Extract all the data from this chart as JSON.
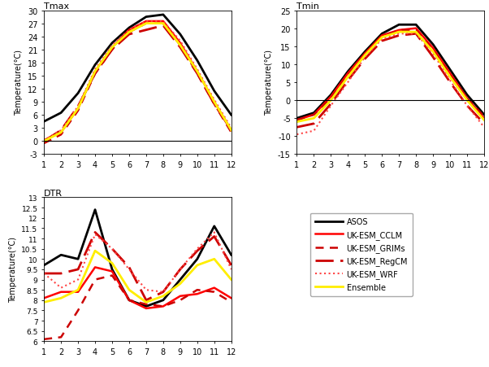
{
  "months": [
    1,
    2,
    3,
    4,
    5,
    6,
    7,
    8,
    9,
    10,
    11,
    12
  ],
  "tmax": {
    "ASOS": [
      4.5,
      6.5,
      11.0,
      17.5,
      22.5,
      26.0,
      28.5,
      29.0,
      24.5,
      18.5,
      11.5,
      6.0
    ],
    "UK-ESM_CCLM": [
      0.2,
      2.0,
      7.5,
      16.0,
      21.5,
      25.5,
      27.5,
      27.5,
      22.5,
      16.0,
      9.0,
      2.5
    ],
    "UK-ESM_GRIMs": [
      -0.5,
      1.5,
      7.0,
      15.5,
      21.0,
      25.0,
      27.0,
      27.0,
      22.0,
      15.5,
      8.5,
      2.0
    ],
    "UK-ESM_RegCM": [
      0.0,
      2.5,
      8.0,
      15.5,
      21.0,
      24.5,
      25.5,
      26.5,
      21.5,
      15.5,
      8.5,
      2.5
    ],
    "UK-ESM_WRF": [
      0.2,
      2.5,
      8.0,
      16.5,
      22.0,
      25.5,
      27.5,
      27.5,
      23.0,
      16.5,
      9.5,
      3.0
    ],
    "Ensemble": [
      0.0,
      2.0,
      7.5,
      16.0,
      21.5,
      25.0,
      27.0,
      27.0,
      22.0,
      16.0,
      9.0,
      2.5
    ]
  },
  "tmin": {
    "ASOS": [
      -5.0,
      -3.5,
      1.5,
      8.0,
      13.5,
      18.5,
      21.0,
      21.0,
      15.5,
      8.5,
      1.5,
      -4.0
    ],
    "UK-ESM_CCLM": [
      -5.5,
      -4.0,
      1.0,
      7.5,
      13.0,
      18.0,
      19.5,
      20.0,
      14.5,
      7.5,
      0.5,
      -5.0
    ],
    "UK-ESM_GRIMs": [
      -5.5,
      -4.0,
      0.5,
      7.0,
      12.5,
      17.5,
      19.5,
      19.5,
      14.0,
      7.0,
      0.5,
      -4.5
    ],
    "UK-ESM_RegCM": [
      -7.5,
      -6.5,
      -1.0,
      5.5,
      11.5,
      16.5,
      18.0,
      18.5,
      12.0,
      5.0,
      -1.5,
      -6.5
    ],
    "UK-ESM_WRF": [
      -9.5,
      -8.5,
      -1.5,
      5.0,
      12.0,
      17.0,
      18.5,
      18.5,
      13.0,
      5.5,
      -1.5,
      -7.5
    ],
    "Ensemble": [
      -6.0,
      -5.0,
      0.0,
      6.5,
      12.5,
      17.5,
      19.0,
      19.0,
      13.5,
      6.5,
      0.0,
      -5.5
    ]
  },
  "dtr": {
    "ASOS": [
      9.7,
      10.2,
      10.0,
      12.4,
      9.5,
      8.0,
      7.7,
      8.0,
      9.0,
      10.0,
      11.6,
      10.2
    ],
    "UK-ESM_CCLM": [
      8.1,
      8.4,
      8.4,
      9.6,
      9.4,
      8.0,
      7.6,
      7.7,
      8.2,
      8.3,
      8.6,
      8.1
    ],
    "UK-ESM_GRIMs": [
      6.1,
      6.2,
      7.5,
      9.0,
      9.2,
      8.0,
      7.8,
      7.7,
      8.0,
      8.5,
      8.4,
      7.9
    ],
    "UK-ESM_RegCM": [
      9.3,
      9.3,
      9.5,
      11.3,
      10.5,
      9.6,
      8.0,
      8.4,
      9.5,
      10.4,
      11.1,
      9.7
    ],
    "UK-ESM_WRF": [
      9.3,
      8.6,
      9.0,
      11.2,
      10.5,
      9.5,
      8.5,
      8.4,
      9.5,
      10.5,
      11.3,
      9.5
    ],
    "Ensemble": [
      7.9,
      8.1,
      8.5,
      10.4,
      9.8,
      8.5,
      7.9,
      8.2,
      8.8,
      9.7,
      10.0,
      9.0
    ]
  },
  "colors": {
    "ASOS": "#000000",
    "UK-ESM_CCLM": "#ff0000",
    "UK-ESM_GRIMs": "#cc0000",
    "UK-ESM_RegCM": "#cc0000",
    "UK-ESM_WRF": "#ff4444",
    "Ensemble": "#ffee00"
  },
  "linestyles": {
    "ASOS": "solid",
    "UK-ESM_CCLM": "solid",
    "UK-ESM_GRIMs": "dashed",
    "UK-ESM_RegCM": "dashed",
    "UK-ESM_WRF": "dotted",
    "Ensemble": "solid"
  },
  "dashes": {
    "ASOS": [],
    "UK-ESM_CCLM": [],
    "UK-ESM_GRIMs": [
      4,
      3
    ],
    "UK-ESM_RegCM": [
      8,
      3
    ],
    "UK-ESM_WRF": [],
    "Ensemble": []
  },
  "linewidths": {
    "ASOS": 2.0,
    "UK-ESM_CCLM": 1.8,
    "UK-ESM_GRIMs": 1.8,
    "UK-ESM_RegCM": 2.0,
    "UK-ESM_WRF": 1.5,
    "Ensemble": 2.0
  },
  "tmax_ylim": [
    -3,
    30
  ],
  "tmax_yticks": [
    -3,
    0,
    3,
    6,
    9,
    12,
    15,
    18,
    21,
    24,
    27,
    30
  ],
  "tmin_ylim": [
    -15,
    25
  ],
  "tmin_yticks": [
    -15,
    -10,
    -5,
    0,
    5,
    10,
    15,
    20,
    25
  ],
  "dtr_ylim": [
    6,
    13
  ],
  "dtr_yticks": [
    6.0,
    6.5,
    7.0,
    7.5,
    8.0,
    8.5,
    9.0,
    9.5,
    10.0,
    10.5,
    11.0,
    11.5,
    12.0,
    12.5,
    13.0
  ],
  "series_order": [
    "ASOS",
    "UK-ESM_CCLM",
    "UK-ESM_GRIMs",
    "UK-ESM_RegCM",
    "UK-ESM_WRF",
    "Ensemble"
  ],
  "legend_labels": {
    "ASOS": "ASOS",
    "UK-ESM_CCLM": "UK-ESM_CCLM",
    "UK-ESM_GRIMs": "UK-ESM_GRIMs",
    "UK-ESM_RegCM": "UK-ESM_RegCM",
    "UK-ESM_WRF": "UK-ESM_WRF",
    "Ensemble": "Ensemble"
  }
}
